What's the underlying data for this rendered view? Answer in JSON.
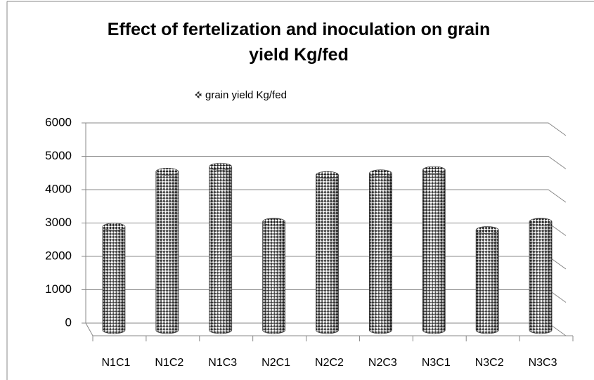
{
  "chart_data": {
    "type": "bar",
    "title": "Effect of fertelization and inoculation on grain yield Kg/fed",
    "categories": [
      "N1C1",
      "N1C2",
      "N1C3",
      "N2C1",
      "N2C2",
      "N2C3",
      "N3C1",
      "N3C2",
      "N3C3"
    ],
    "series": [
      {
        "name": "grain yield Kg/fed",
        "color": "#000000",
        "values": [
          3100,
          4750,
          4900,
          3250,
          4650,
          4700,
          4800,
          3000,
          3250
        ]
      }
    ],
    "ylim": [
      0,
      6000
    ],
    "yticks": [
      0,
      1000,
      2000,
      3000,
      4000,
      5000,
      6000
    ],
    "grid": true,
    "legend": "top"
  }
}
